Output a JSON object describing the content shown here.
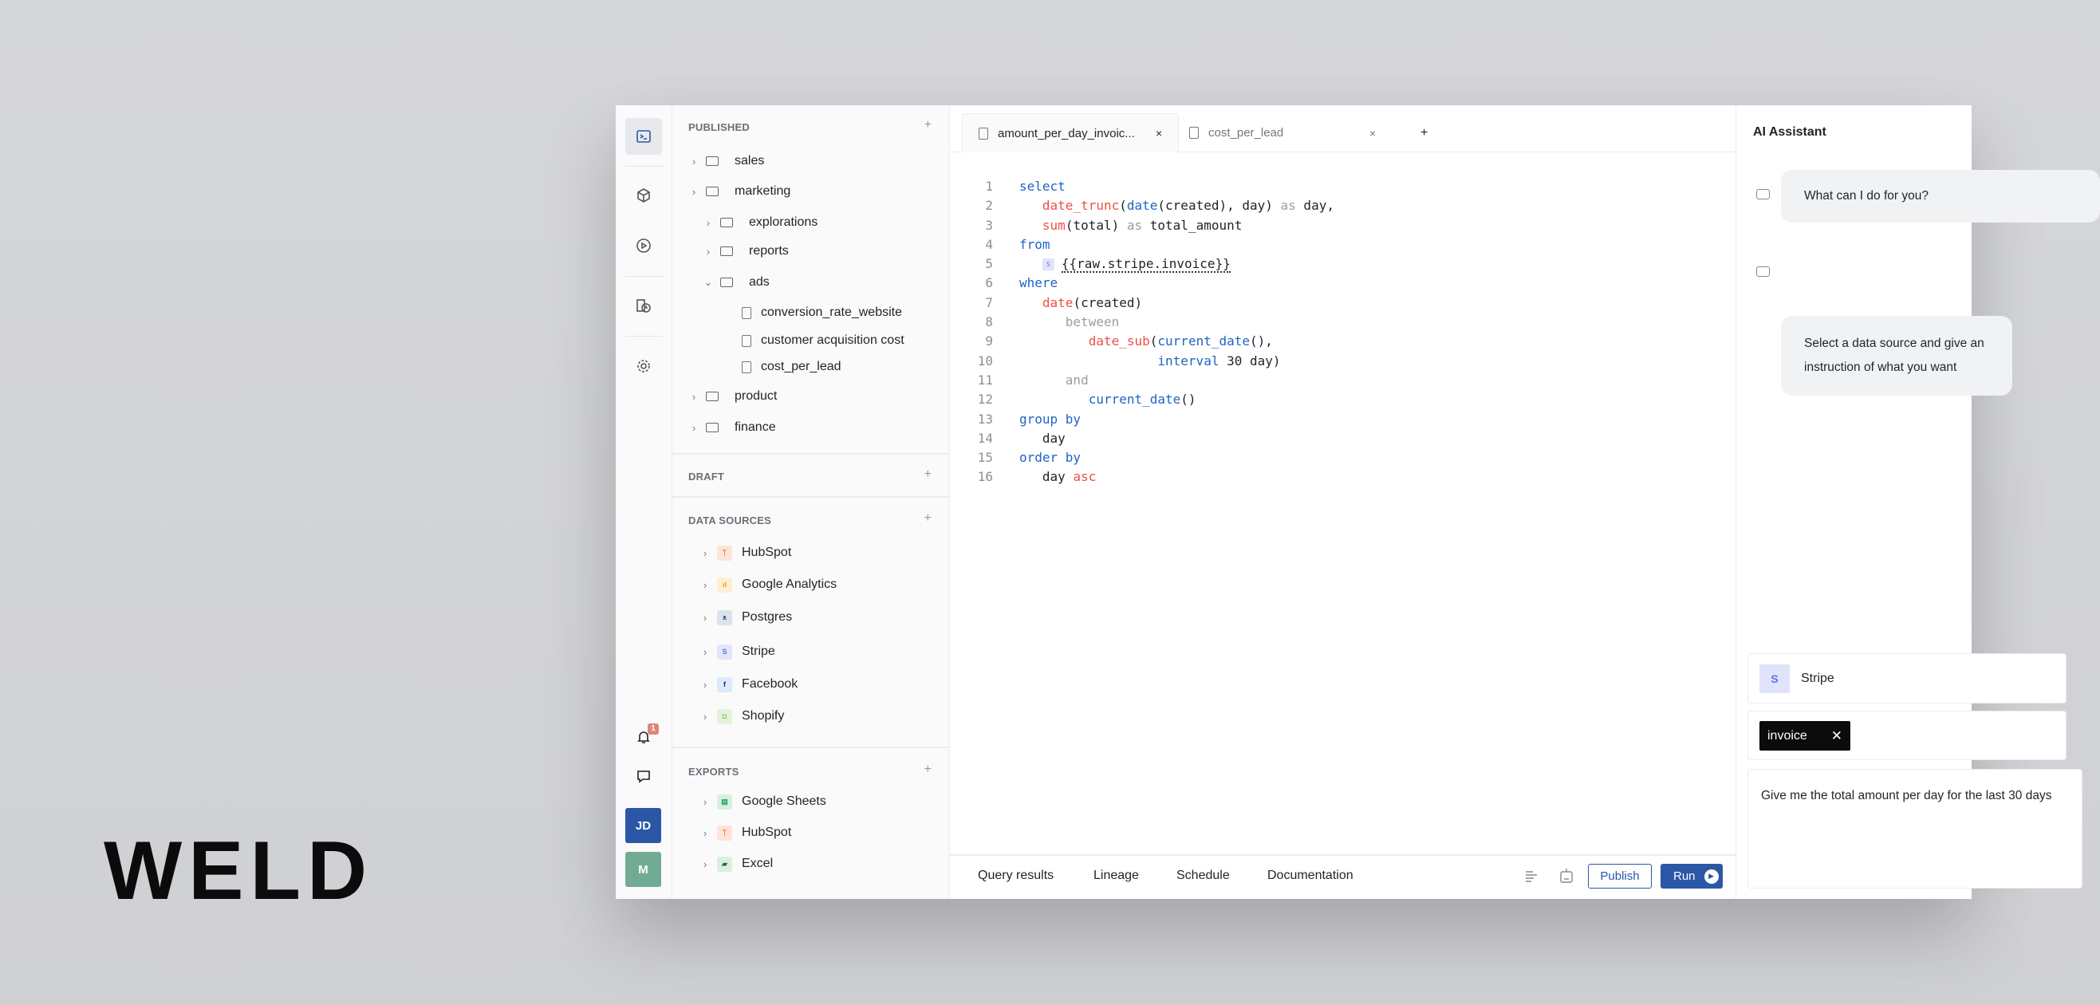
{
  "brand": {
    "logo": "WELD"
  },
  "rail": {
    "avatars": [
      {
        "initials": "JD",
        "color": "#2b57a6"
      },
      {
        "initials": "M",
        "color": "#72ab93"
      }
    ],
    "notification_count": "1"
  },
  "tree": {
    "published": {
      "title": "PUBLISHED",
      "items": [
        {
          "label": "sales",
          "type": "folder",
          "depth": 0,
          "open": false
        },
        {
          "label": "marketing",
          "type": "folder",
          "depth": 0,
          "open": false
        },
        {
          "label": "explorations",
          "type": "folder",
          "depth": 1,
          "open": false
        },
        {
          "label": "reports",
          "type": "folder",
          "depth": 1,
          "open": false
        },
        {
          "label": "ads",
          "type": "folder",
          "depth": 1,
          "open": true
        },
        {
          "label": "conversion_rate_website",
          "type": "file",
          "depth": 2
        },
        {
          "label": "customer acquisition cost",
          "type": "file",
          "depth": 2
        },
        {
          "label": "cost_per_lead",
          "type": "file",
          "depth": 2
        },
        {
          "label": "product",
          "type": "folder",
          "depth": 0,
          "open": false
        },
        {
          "label": "finance",
          "type": "folder",
          "depth": 0,
          "open": false
        }
      ]
    },
    "draft": {
      "title": "DRAFT"
    },
    "data_sources": {
      "title": "DATA SOURCES",
      "items": [
        {
          "label": "HubSpot",
          "icon": "hubspot-icon",
          "glyph": "ᛉ",
          "bg": "#fde3d8",
          "fg": "#f4743b"
        },
        {
          "label": "Google Analytics",
          "icon": "google-analytics-icon",
          "glyph": "ıl",
          "bg": "#fdefd2",
          "fg": "#f29d0c"
        },
        {
          "label": "Postgres",
          "icon": "postgres-icon",
          "glyph": "ᴥ",
          "bg": "#dde3ea",
          "fg": "#336791"
        },
        {
          "label": "Stripe",
          "icon": "stripe-icon",
          "glyph": "S",
          "bg": "#e3e5fb",
          "fg": "#6470e8"
        },
        {
          "label": "Facebook",
          "icon": "facebook-icon",
          "glyph": "f",
          "bg": "#dbeafc",
          "fg": "#1a2f5a"
        },
        {
          "label": "Shopify",
          "icon": "shopify-icon",
          "glyph": "◘",
          "bg": "#e5f2dc",
          "fg": "#7ab55c"
        }
      ]
    },
    "exports": {
      "title": "EXPORTS",
      "items": [
        {
          "label": "Google Sheets",
          "icon": "google-sheets-icon",
          "glyph": "▤",
          "bg": "#d9f0e1",
          "fg": "#1fa463"
        },
        {
          "label": "HubSpot",
          "icon": "hubspot-icon",
          "glyph": "ᛉ",
          "bg": "#fde3d8",
          "fg": "#f4743b"
        },
        {
          "label": "Excel",
          "icon": "excel-icon",
          "glyph": "▰",
          "bg": "#d9f0e1",
          "fg": "#1d6f42"
        }
      ]
    }
  },
  "editor": {
    "tabs": [
      {
        "label": "amount_per_day_invoic...",
        "active": true
      },
      {
        "label": "cost_per_lead",
        "active": false
      }
    ],
    "add_tab": "+",
    "close": "×",
    "lines": [
      [
        [
          "select",
          "kw"
        ]
      ],
      [
        [
          "   ",
          ""
        ],
        [
          "date_trunc",
          "fn"
        ],
        [
          "(",
          "tx"
        ],
        [
          "date",
          "kw"
        ],
        [
          "(created), day) ",
          "tx"
        ],
        [
          "as",
          "mu"
        ],
        [
          " day,",
          "tx"
        ]
      ],
      [
        [
          "   ",
          ""
        ],
        [
          "sum",
          "fn"
        ],
        [
          "(total) ",
          "tx"
        ],
        [
          "as",
          "mu"
        ],
        [
          " total_amount",
          "tx"
        ]
      ],
      [
        [
          "from",
          "kw"
        ]
      ],
      [
        [
          "   ",
          ""
        ],
        [
          "S",
          "badge"
        ],
        [
          "{{raw.stripe.invoice}}",
          "ref"
        ]
      ],
      [
        [
          "where",
          "kw"
        ]
      ],
      [
        [
          "   ",
          ""
        ],
        [
          "date",
          "fn"
        ],
        [
          "(created)",
          "tx"
        ]
      ],
      [
        [
          "      ",
          ""
        ],
        [
          "between",
          "mu"
        ]
      ],
      [
        [
          "         ",
          ""
        ],
        [
          "date_sub",
          "fn"
        ],
        [
          "(",
          "tx"
        ],
        [
          "current_date",
          "kw"
        ],
        [
          "(),",
          "tx"
        ]
      ],
      [
        [
          "                  ",
          ""
        ],
        [
          "interval",
          "kw"
        ],
        [
          " 30 day)",
          "tx"
        ]
      ],
      [
        [
          "      ",
          ""
        ],
        [
          "and",
          "mu"
        ]
      ],
      [
        [
          "         ",
          ""
        ],
        [
          "current_date",
          "kw"
        ],
        [
          "()",
          "tx"
        ]
      ],
      [
        [
          "group by",
          "kw"
        ]
      ],
      [
        [
          "   ",
          ""
        ],
        [
          "day",
          "tx"
        ]
      ],
      [
        [
          "order by",
          "kw"
        ]
      ],
      [
        [
          "   ",
          ""
        ],
        [
          "day ",
          "tx"
        ],
        [
          "asc",
          "fn"
        ]
      ]
    ],
    "bottom_tabs": [
      "Query results",
      "Lineage",
      "Schedule",
      "Documentation"
    ],
    "publish_label": "Publish",
    "run_label": "Run",
    "accent": "#2b57a6"
  },
  "ai": {
    "title": "AI Assistant",
    "messages": [
      "What can I do for you?",
      "Select a data source and give an instruction of what you want"
    ],
    "source": {
      "badge": "S",
      "label": "Stripe"
    },
    "table_chip": "invoice",
    "prompt": "Give me the total amount per day for the last 30 days"
  }
}
